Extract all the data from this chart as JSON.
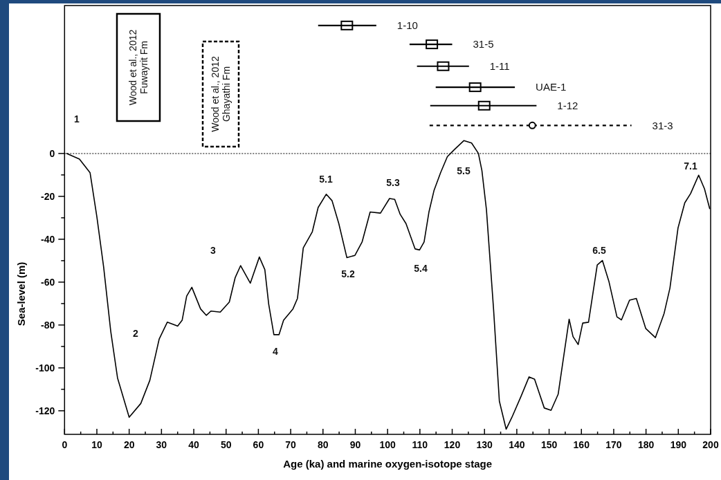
{
  "chart_data": {
    "type": "line",
    "xlabel": "Age (ka) and marine oxygen-isotope stage",
    "ylabel": "Sea-level (m)",
    "xlim": [
      0,
      200
    ],
    "ylim": [
      -131,
      69
    ],
    "xticks": [
      0,
      {
        "value": 5,
        "label": null
      },
      10,
      {
        "value": 15,
        "label": null
      },
      20,
      {
        "value": 25,
        "label": null
      },
      30,
      {
        "value": 35,
        "label": null
      },
      40,
      {
        "value": 45,
        "label": null
      },
      50,
      {
        "value": 55,
        "label": null
      },
      60,
      {
        "value": 65,
        "label": null
      },
      70,
      {
        "value": 75,
        "label": null
      },
      80,
      {
        "value": 85,
        "label": null
      },
      90,
      {
        "value": 95,
        "label": null
      },
      100,
      {
        "value": 105,
        "label": null
      },
      110,
      {
        "value": 115,
        "label": null
      },
      120,
      {
        "value": 125,
        "label": null
      },
      130,
      {
        "value": 135,
        "label": null
      },
      140,
      {
        "value": 145,
        "label": null
      },
      150,
      {
        "value": 155,
        "label": null
      },
      160,
      {
        "value": 165,
        "label": null
      },
      170,
      {
        "value": 175,
        "label": null
      },
      180,
      {
        "value": 185,
        "label": null
      },
      190,
      {
        "value": 195,
        "label": null
      },
      200
    ],
    "yticks": [
      0,
      {
        "value": -10,
        "label": null
      },
      -20,
      {
        "value": -30,
        "label": null
      },
      -40,
      {
        "value": -50,
        "label": null
      },
      -60,
      {
        "value": -70,
        "label": null
      },
      -80,
      {
        "value": -90,
        "label": null
      },
      -100,
      {
        "value": -110,
        "label": null
      },
      -120
    ],
    "ref_lines": [
      {
        "axis": "y",
        "value": 0,
        "label": null,
        "line_style": "dotted",
        "color": "#555555"
      }
    ],
    "series": [
      {
        "color": "#000000",
        "marker": "none",
        "line_style": "solid",
        "x": [
          0.7,
          4.6,
          7.9,
          10,
          12.1,
          14.3,
          16.4,
          20,
          23.6,
          26.4,
          29.3,
          31.8,
          35,
          36.4,
          37.8,
          39.4,
          42.1,
          43.9,
          45.3,
          48.2,
          51,
          52.8,
          54.5,
          57.5,
          60.3,
          62,
          63.2,
          64.8,
          66.4,
          67.8,
          70.7,
          72.1,
          73.9,
          76.7,
          78.5,
          81,
          82.8,
          84.9,
          87.4,
          89.9,
          92.1,
          94.6,
          97.8,
          100.6,
          102.2,
          103.9,
          105.7,
          108.5,
          109.9,
          111.3,
          112.8,
          114.4,
          116.4,
          118.5,
          120.6,
          123.6,
          126,
          128.1,
          129.2,
          130.6,
          132.8,
          134.6,
          136.7,
          138.5,
          141.3,
          143.8,
          145.5,
          148.5,
          150.6,
          152.8,
          156.2,
          157.4,
          159,
          160.4,
          162.2,
          164.9,
          166.5,
          168.5,
          171,
          172.4,
          174.9,
          177,
          179.9,
          182.9,
          185.6,
          187.4,
          189.9,
          192,
          193.8,
          196.3,
          198.1,
          199.7
        ],
        "values": [
          0,
          -2.6,
          -9,
          -29.5,
          -53,
          -83,
          -104.7,
          -123,
          -116.6,
          -105.8,
          -86.5,
          -78.7,
          -80.5,
          -77.8,
          -66.5,
          -62.4,
          -72.5,
          -75.5,
          -73.5,
          -74,
          -69.3,
          -58,
          -52.3,
          -60.5,
          -48.3,
          -54.2,
          -70.3,
          -84.5,
          -84.5,
          -77.8,
          -72.5,
          -67.6,
          -44,
          -36.5,
          -25.2,
          -19,
          -22,
          -32.7,
          -48.6,
          -47.5,
          -41.3,
          -27.3,
          -27.8,
          -21,
          -21.4,
          -28.4,
          -32.7,
          -44.5,
          -45,
          -41.3,
          -27.3,
          -17.1,
          -9,
          -1.5,
          1.7,
          6,
          4.9,
          0.1,
          -8,
          -26.2,
          -72.5,
          -115.5,
          -128.6,
          -123,
          -113.3,
          -104.2,
          -105.3,
          -118.7,
          -119.8,
          -112.3,
          -77.3,
          -85.4,
          -89.1,
          -79.1,
          -78.7,
          -52,
          -49.9,
          -59.6,
          -76.2,
          -77.6,
          -68.4,
          -67.6,
          -81.6,
          -85.9,
          -74.6,
          -62.8,
          -34.8,
          -23,
          -18.7,
          -10.1,
          -16.5,
          -25.7
        ]
      },
      {
        "type": "scatter",
        "name": "1-10",
        "color": "#000000",
        "marker": "square",
        "line_style": "solid",
        "x": [
          87.4
        ],
        "values": [
          59.7
        ],
        "xerrors": [
          [
            78.5,
            96.5
          ]
        ]
      },
      {
        "type": "scatter",
        "name": "31-5",
        "color": "#000000",
        "marker": "square",
        "line_style": "solid",
        "x": [
          113.7
        ],
        "values": [
          50.9
        ],
        "xerrors": [
          [
            106.8,
            120
          ]
        ]
      },
      {
        "type": "scatter",
        "name": "1-11",
        "color": "#000000",
        "marker": "square",
        "line_style": "solid",
        "x": [
          117.2
        ],
        "values": [
          40.7
        ],
        "xerrors": [
          [
            109.1,
            125.2
          ]
        ]
      },
      {
        "type": "scatter",
        "name": "UAE-1",
        "color": "#000000",
        "marker": "square",
        "line_style": "solid",
        "x": [
          127.1
        ],
        "values": [
          30.9
        ],
        "xerrors": [
          [
            114.9,
            139.4
          ]
        ]
      },
      {
        "type": "scatter",
        "name": "1-12",
        "color": "#000000",
        "marker": "square",
        "line_style": "solid",
        "x": [
          129.9
        ],
        "values": [
          22.3
        ],
        "xerrors": [
          [
            113.2,
            146.1
          ]
        ]
      },
      {
        "type": "scatter",
        "name": "31-3",
        "color": "#000000",
        "marker": "circle",
        "line_style": "dashed",
        "x": [
          144.8
        ],
        "values": [
          13.1
        ],
        "xerrors": [
          [
            113,
            175.5
          ]
        ]
      }
    ],
    "annotations": [
      "1",
      "2",
      "3",
      "4",
      "5.1",
      "5.2",
      "5.3",
      "5.4",
      "5.5",
      "6.5",
      "7.1",
      "Wood et al., 2012\nFuwayrit Fm",
      "Wood et al., 2012\nGhayathi Fm"
    ]
  }
}
